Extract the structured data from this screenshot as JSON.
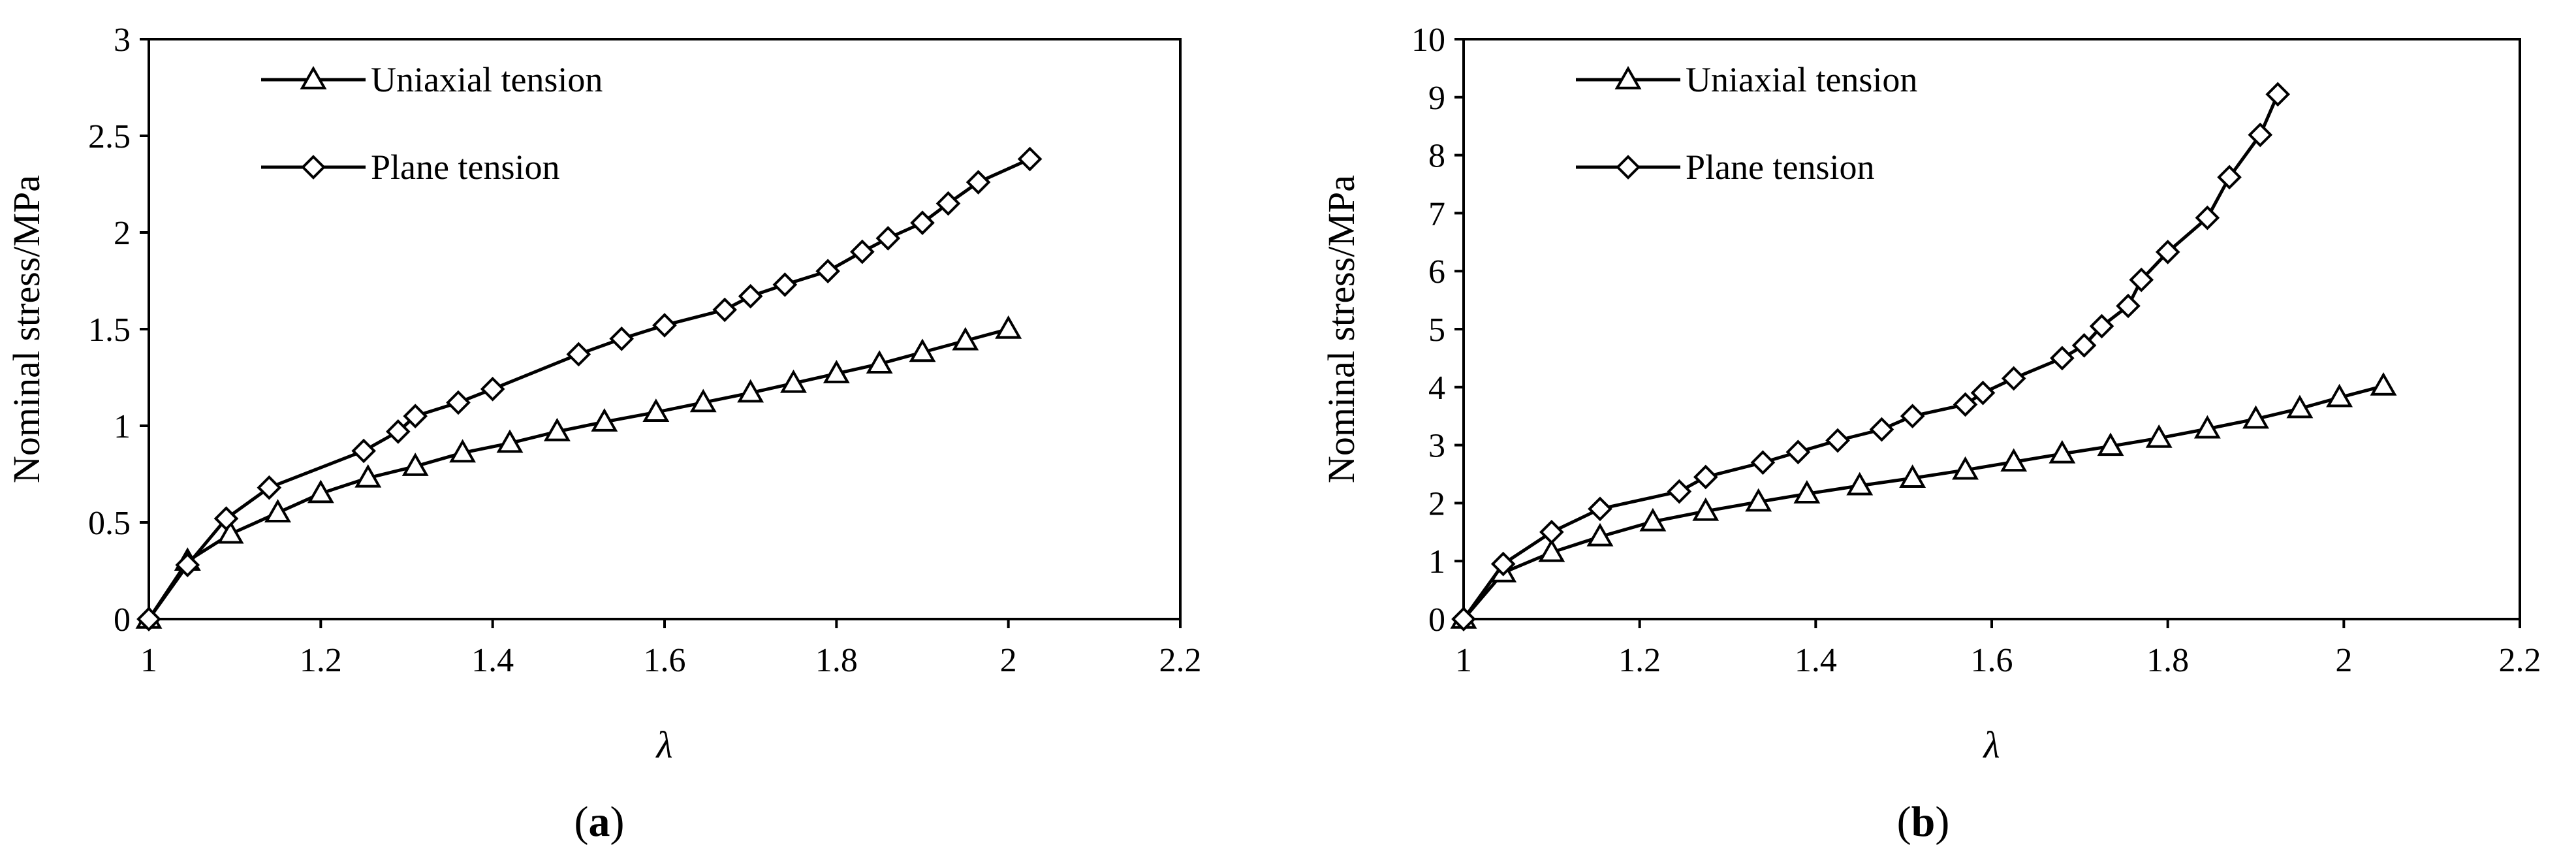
{
  "chart_data": [
    {
      "type": "line",
      "panel_label": "(a)",
      "xlabel": "λ",
      "ylabel": "Nominal stress/MPa",
      "xlim": [
        1,
        2.2
      ],
      "ylim": [
        0,
        3
      ],
      "x_ticks": [
        "1",
        "1.2",
        "1.4",
        "1.6",
        "1.8",
        "2",
        "2.2"
      ],
      "y_ticks": [
        "0",
        "0.5",
        "1",
        "1.5",
        "2",
        "2.5",
        "3"
      ],
      "legend_position": "top-left",
      "grid": false,
      "series": [
        {
          "name": "Uniaxial tension",
          "marker": "triangle",
          "points": [
            [
              1.0,
              0.0
            ],
            [
              1.045,
              0.3
            ],
            [
              1.095,
              0.44
            ],
            [
              1.15,
              0.55
            ],
            [
              1.2,
              0.65
            ],
            [
              1.255,
              0.73
            ],
            [
              1.31,
              0.79
            ],
            [
              1.365,
              0.86
            ],
            [
              1.42,
              0.91
            ],
            [
              1.475,
              0.97
            ],
            [
              1.53,
              1.02
            ],
            [
              1.59,
              1.07
            ],
            [
              1.645,
              1.12
            ],
            [
              1.7,
              1.17
            ],
            [
              1.75,
              1.22
            ],
            [
              1.8,
              1.27
            ],
            [
              1.85,
              1.32
            ],
            [
              1.9,
              1.38
            ],
            [
              1.95,
              1.44
            ],
            [
              2.0,
              1.5
            ]
          ]
        },
        {
          "name": "Plane tension",
          "marker": "diamond",
          "points": [
            [
              1.0,
              0.0
            ],
            [
              1.045,
              0.28
            ],
            [
              1.09,
              0.52
            ],
            [
              1.14,
              0.68
            ],
            [
              1.25,
              0.87
            ],
            [
              1.29,
              0.97
            ],
            [
              1.31,
              1.05
            ],
            [
              1.36,
              1.12
            ],
            [
              1.4,
              1.19
            ],
            [
              1.5,
              1.37
            ],
            [
              1.55,
              1.45
            ],
            [
              1.6,
              1.52
            ],
            [
              1.67,
              1.6
            ],
            [
              1.7,
              1.67
            ],
            [
              1.74,
              1.73
            ],
            [
              1.79,
              1.8
            ],
            [
              1.83,
              1.9
            ],
            [
              1.86,
              1.97
            ],
            [
              1.9,
              2.05
            ],
            [
              1.93,
              2.15
            ],
            [
              1.965,
              2.26
            ],
            [
              2.025,
              2.38
            ]
          ]
        }
      ]
    },
    {
      "type": "line",
      "panel_label": "(b)",
      "xlabel": "λ",
      "ylabel": "Nominal stress/MPa",
      "xlim": [
        1,
        2.2
      ],
      "ylim": [
        0,
        10
      ],
      "x_ticks": [
        "1",
        "1.2",
        "1.4",
        "1.6",
        "1.8",
        "2",
        "2.2"
      ],
      "y_ticks": [
        "0",
        "1",
        "2",
        "3",
        "4",
        "5",
        "6",
        "7",
        "8",
        "9",
        "10"
      ],
      "legend_position": "top-left",
      "grid": false,
      "series": [
        {
          "name": "Uniaxial tension",
          "marker": "triangle",
          "points": [
            [
              1.0,
              0.0
            ],
            [
              1.045,
              0.8
            ],
            [
              1.1,
              1.15
            ],
            [
              1.155,
              1.42
            ],
            [
              1.215,
              1.68
            ],
            [
              1.275,
              1.86
            ],
            [
              1.335,
              2.02
            ],
            [
              1.39,
              2.16
            ],
            [
              1.45,
              2.3
            ],
            [
              1.51,
              2.43
            ],
            [
              1.57,
              2.57
            ],
            [
              1.625,
              2.71
            ],
            [
              1.68,
              2.85
            ],
            [
              1.735,
              2.98
            ],
            [
              1.79,
              3.12
            ],
            [
              1.845,
              3.28
            ],
            [
              1.9,
              3.45
            ],
            [
              1.95,
              3.63
            ],
            [
              1.995,
              3.82
            ],
            [
              2.045,
              4.02
            ]
          ]
        },
        {
          "name": "Plane tension",
          "marker": "diamond",
          "points": [
            [
              1.0,
              0.0
            ],
            [
              1.045,
              0.95
            ],
            [
              1.1,
              1.5
            ],
            [
              1.155,
              1.9
            ],
            [
              1.245,
              2.2
            ],
            [
              1.275,
              2.45
            ],
            [
              1.34,
              2.7
            ],
            [
              1.38,
              2.88
            ],
            [
              1.425,
              3.08
            ],
            [
              1.475,
              3.27
            ],
            [
              1.51,
              3.5
            ],
            [
              1.57,
              3.7
            ],
            [
              1.59,
              3.9
            ],
            [
              1.625,
              4.15
            ],
            [
              1.68,
              4.5
            ],
            [
              1.705,
              4.72
            ],
            [
              1.725,
              5.05
            ],
            [
              1.755,
              5.4
            ],
            [
              1.77,
              5.85
            ],
            [
              1.8,
              6.33
            ],
            [
              1.845,
              6.92
            ],
            [
              1.87,
              7.62
            ],
            [
              1.905,
              8.35
            ],
            [
              1.925,
              9.05
            ]
          ]
        }
      ]
    }
  ]
}
